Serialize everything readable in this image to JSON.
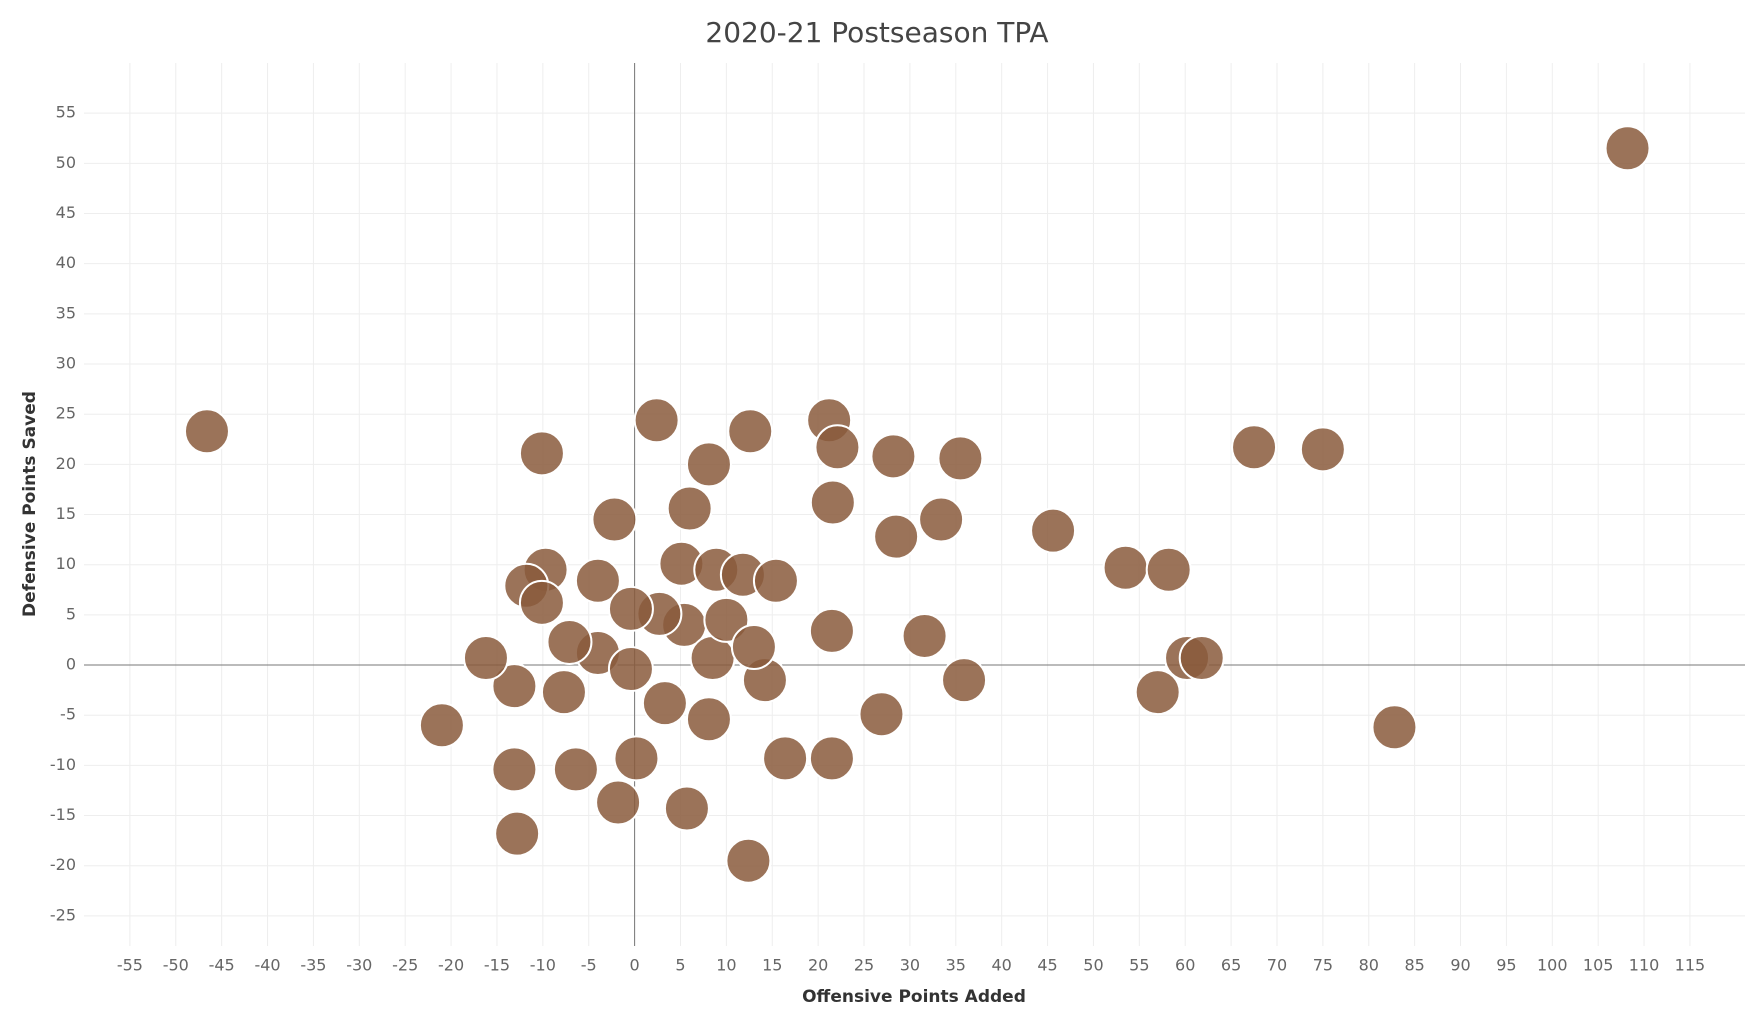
{
  "chart_data": {
    "type": "scatter",
    "title": "2020-21 Postseason TPA",
    "x_label": "Offensive Points Added",
    "y_label": "Defensive Points Saved",
    "xlim": [
      -60,
      121
    ],
    "ylim": [
      -28,
      60
    ],
    "xticks": [
      -55,
      -50,
      -45,
      -40,
      -35,
      -30,
      -25,
      -20,
      -15,
      -10,
      -5,
      0,
      5,
      10,
      15,
      20,
      25,
      30,
      35,
      40,
      45,
      50,
      55,
      60,
      65,
      70,
      75,
      80,
      85,
      90,
      95,
      100,
      105,
      110,
      115
    ],
    "yticks": [
      -25,
      -20,
      -15,
      -10,
      -5,
      0,
      5,
      10,
      15,
      20,
      25,
      30,
      35,
      40,
      45,
      50,
      55
    ],
    "grid": true,
    "series": [
      {
        "color": "#8a5a3c",
        "x": [
          108.2,
          -46.6,
          -10.1,
          67.5,
          75,
          45.6,
          53.5,
          58.2,
          82.8,
          12.4,
          2.4,
          12.6,
          21.2,
          22.1,
          28.2,
          35.5,
          8.1,
          21.6,
          6,
          33.4,
          28.5,
          -2.2,
          -9.7,
          -11.8,
          -4,
          5.1,
          8.9,
          11.8,
          15.4,
          21.5,
          31.6,
          35.9,
          26.9,
          21.5,
          16.4,
          57,
          60.2,
          61.8,
          -21,
          -13.1,
          -16.2,
          -7.7,
          -4,
          -0.4,
          5.4,
          8.5,
          -13.1,
          -6.4,
          -1.8,
          5.7,
          -12.8,
          0.2,
          8.1,
          14.2,
          2.7,
          10,
          -0.4,
          -10.1,
          -7.1,
          13,
          3.3
        ],
        "values": [
          51.5,
          23.3,
          21.1,
          21.7,
          21.5,
          13.4,
          9.7,
          9.5,
          -6.2,
          -19.5,
          24.4,
          23.3,
          24.4,
          21.7,
          20.8,
          20.6,
          20,
          16.2,
          15.6,
          14.5,
          12.8,
          14.5,
          9.5,
          7.9,
          8.4,
          10.1,
          9.5,
          9,
          8.4,
          3.4,
          2.9,
          -1.5,
          -4.9,
          -9.3,
          -9.3,
          -2.7,
          0.7,
          0.7,
          -6,
          -2.1,
          0.7,
          -2.7,
          1.2,
          -0.4,
          4,
          0.7,
          -10.4,
          -10.4,
          -13.7,
          -14.3,
          -16.8,
          -9.3,
          -5.4,
          -1.5,
          5.1,
          4.5,
          5.6,
          6.2,
          2.3,
          1.8,
          -3.8
        ]
      }
    ]
  }
}
